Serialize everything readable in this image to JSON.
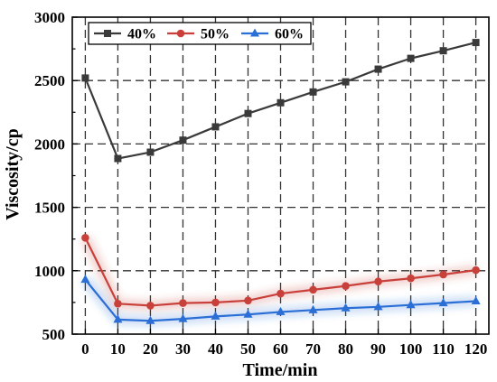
{
  "chart_data": {
    "type": "line",
    "title": "",
    "xlabel": "Time/min",
    "ylabel": "Viscosity/cp",
    "x": [
      0,
      10,
      20,
      30,
      40,
      50,
      60,
      70,
      80,
      90,
      100,
      110,
      120
    ],
    "x_tick_labels": [
      "0",
      "10",
      "20",
      "30",
      "40",
      "50",
      "60",
      "70",
      "80",
      "90",
      "100",
      "110",
      "120"
    ],
    "y_tick_labels": [
      "500",
      "1000",
      "1500",
      "2000",
      "2500",
      "3000"
    ],
    "xlim": [
      -4,
      124
    ],
    "ylim": [
      500,
      3000
    ],
    "grid": true,
    "legend_position": "top-left",
    "series": [
      {
        "name": "40%",
        "color": "#3a3a3a",
        "marker": "square",
        "values": [
          2520,
          1885,
          1935,
          2030,
          2135,
          2240,
          2325,
          2410,
          2490,
          2590,
          2675,
          2735,
          2800
        ]
      },
      {
        "name": "50%",
        "color": "#c9403a",
        "marker": "circle",
        "values": [
          1260,
          740,
          725,
          745,
          750,
          765,
          820,
          850,
          880,
          915,
          940,
          970,
          1005
        ]
      },
      {
        "name": "60%",
        "color": "#2b6fd6",
        "marker": "triangle",
        "values": [
          930,
          615,
          605,
          620,
          640,
          655,
          675,
          690,
          705,
          715,
          730,
          745,
          760
        ]
      }
    ]
  }
}
